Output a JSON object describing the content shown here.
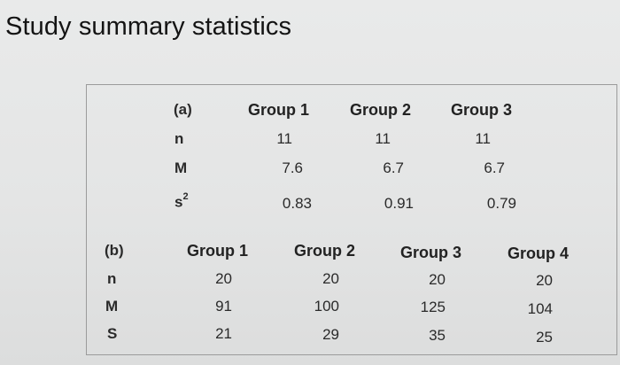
{
  "title": "Study summary statistics",
  "part_a": {
    "label": "(a)",
    "headers": [
      "Group 1",
      "Group 2",
      "Group 3"
    ],
    "rows": [
      {
        "stat": "n",
        "values": [
          "11",
          "11",
          "11"
        ]
      },
      {
        "stat": "M",
        "values": [
          "7.6",
          "6.7",
          "6.7"
        ]
      },
      {
        "stat": "s",
        "sup": "2",
        "values": [
          "0.83",
          "0.91",
          "0.79"
        ]
      }
    ]
  },
  "part_b": {
    "label": "(b)",
    "headers": [
      "Group 1",
      "Group 2",
      "Group 3",
      "Group 4"
    ],
    "rows": [
      {
        "stat": "n",
        "values": [
          "20",
          "20",
          "20",
          "20"
        ]
      },
      {
        "stat": "M",
        "values": [
          "91",
          "100",
          "125",
          "104"
        ]
      },
      {
        "stat": "S",
        "values": [
          "21",
          "29",
          "35",
          "25"
        ]
      }
    ]
  }
}
